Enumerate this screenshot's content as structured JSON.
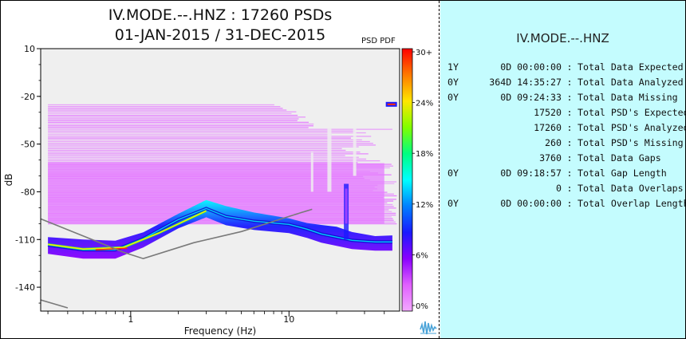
{
  "chart_data": {
    "type": "heatmap",
    "title_line1": "IV.MODE.--.HNZ : 17260 PSDs",
    "title_line2": "01-JAN-2015 / 31-DEC-2015",
    "corner_label": "PSD PDF",
    "xlabel": "Frequency (Hz)",
    "ylabel": "dB",
    "x_scale": "log",
    "xlim": [
      0.27,
      50
    ],
    "ylim": [
      -155,
      10
    ],
    "x_ticks": [
      {
        "value": 1,
        "label": "1"
      },
      {
        "value": 10,
        "label": "10"
      }
    ],
    "y_ticks": [
      {
        "value": 10,
        "label": "10"
      },
      {
        "value": -20,
        "label": "-20"
      },
      {
        "value": -50,
        "label": "-50"
      },
      {
        "value": -80,
        "label": "-80"
      },
      {
        "value": -110,
        "label": "-110"
      },
      {
        "value": -140,
        "label": "-140"
      }
    ],
    "colorbar": {
      "ticks": [
        "30+",
        "24%",
        "18%",
        "12%",
        "6%",
        "0%"
      ],
      "colors": [
        "#ff0000",
        "#ff7a00",
        "#ffe600",
        "#80ff00",
        "#00ff80",
        "#00ffff",
        "#0080ff",
        "#1a1aff",
        "#8a00ff",
        "#e060ff",
        "#f2a8ff"
      ]
    },
    "background_color": "#efefef",
    "sparse_band": {
      "f_min": 0.3,
      "f_max": 48,
      "db_top": -25,
      "db_bottom": -100,
      "color": "#e47cff"
    },
    "noise_models": {
      "nhnm": [
        [
          0.27,
          -97
        ],
        [
          0.9,
          -118
        ],
        [
          1.2,
          -122
        ],
        [
          2.5,
          -112
        ],
        [
          5,
          -105
        ],
        [
          12,
          -93
        ],
        [
          14,
          -91
        ]
      ],
      "nlnm": [
        [
          0.27,
          -148
        ],
        [
          0.4,
          -153
        ]
      ]
    },
    "density_ridge": [
      [
        0.3,
        -114
      ],
      [
        0.5,
        -117
      ],
      [
        0.8,
        -117
      ],
      [
        1.2,
        -110
      ],
      [
        2,
        -98
      ],
      [
        3,
        -91
      ],
      [
        4,
        -96
      ],
      [
        6,
        -99
      ],
      [
        10,
        -101
      ],
      [
        13,
        -104
      ],
      [
        16,
        -107
      ],
      [
        20,
        -109
      ],
      [
        25,
        -111
      ],
      [
        35,
        -112
      ],
      [
        45,
        -112
      ]
    ],
    "peak_lines": [
      [
        0.3,
        -113
      ],
      [
        0.5,
        -116
      ],
      [
        0.9,
        -115
      ],
      [
        1.5,
        -106
      ],
      [
        3,
        -92
      ]
    ],
    "spike_frequency": 23,
    "top_right_spike": {
      "f": 47,
      "db": -25
    }
  },
  "stats": {
    "station": "IV.MODE.--.HNZ",
    "rows": [
      {
        "count": "1Y",
        "duration": "0D 00:00:00",
        "label": "Total Data Expected"
      },
      {
        "count": "0Y",
        "duration": "364D 14:35:27",
        "label": "Total Data Analyzed"
      },
      {
        "count": "0Y",
        "duration": "0D 09:24:33",
        "label": "Total Data Missing"
      },
      {
        "count": "",
        "duration": "17520",
        "label": "Total PSD's Expected"
      },
      {
        "count": "",
        "duration": "17260",
        "label": "Total PSD's Analyzed"
      },
      {
        "count": "",
        "duration": "260",
        "label": "Total PSD's Missing"
      },
      {
        "count": "",
        "duration": "3760",
        "label": "Total Data Gaps"
      },
      {
        "count": "0Y",
        "duration": "0D 09:18:57",
        "label": "Total Gap Length"
      },
      {
        "count": "",
        "duration": "0",
        "label": "Total Data Overlaps"
      },
      {
        "count": "0Y",
        "duration": "0D 00:00:00",
        "label": "Total Overlap Length"
      }
    ]
  }
}
